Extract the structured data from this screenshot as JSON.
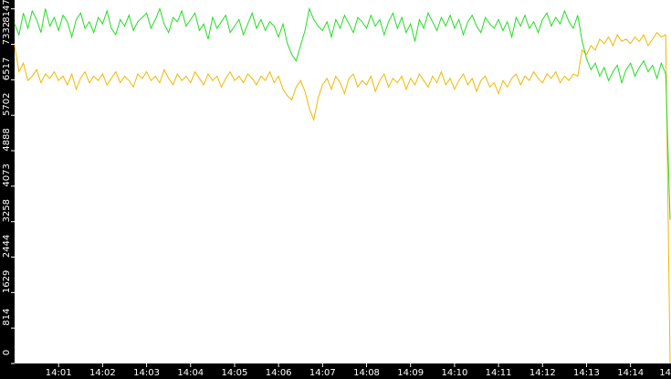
{
  "chart_data": {
    "type": "line",
    "xlim": [
      0,
      14.92
    ],
    "ylim": [
      0,
      8350
    ],
    "xticks": [
      {
        "value": 1,
        "label": "14:01"
      },
      {
        "value": 2,
        "label": "14:02"
      },
      {
        "value": 3,
        "label": "14:03"
      },
      {
        "value": 4,
        "label": "14:04"
      },
      {
        "value": 5,
        "label": "14:05"
      },
      {
        "value": 6,
        "label": "14:06"
      },
      {
        "value": 7,
        "label": "14:07"
      },
      {
        "value": 8,
        "label": "14:08"
      },
      {
        "value": 9,
        "label": "14:09"
      },
      {
        "value": 10,
        "label": "14:10"
      },
      {
        "value": 11,
        "label": "14:11"
      },
      {
        "value": 12,
        "label": "14:12"
      },
      {
        "value": 13,
        "label": "14:13"
      },
      {
        "value": 14,
        "label": "14:14"
      },
      {
        "value": 15,
        "label": "14"
      }
    ],
    "yticks": [
      0,
      814,
      1629,
      2444,
      3258,
      4073,
      4888,
      5702,
      6517,
      7332,
      8147
    ],
    "x": [
      0,
      0.1,
      0.2,
      0.3,
      0.4,
      0.5,
      0.6,
      0.7,
      0.8,
      0.9,
      1,
      1.1,
      1.2,
      1.3,
      1.4,
      1.5,
      1.6,
      1.7,
      1.8,
      1.9,
      2,
      2.1,
      2.2,
      2.3,
      2.4,
      2.5,
      2.6,
      2.7,
      2.8,
      2.9,
      3,
      3.1,
      3.2,
      3.3,
      3.4,
      3.5,
      3.6,
      3.7,
      3.8,
      3.9,
      4,
      4.1,
      4.2,
      4.3,
      4.4,
      4.5,
      4.6,
      4.7,
      4.8,
      4.9,
      5,
      5.1,
      5.2,
      5.3,
      5.4,
      5.5,
      5.6,
      5.7,
      5.8,
      5.9,
      6,
      6.1,
      6.2,
      6.3,
      6.4,
      6.5,
      6.6,
      6.7,
      6.8,
      6.9,
      7,
      7.1,
      7.2,
      7.3,
      7.4,
      7.5,
      7.6,
      7.7,
      7.8,
      7.9,
      8,
      8.1,
      8.2,
      8.3,
      8.4,
      8.5,
      8.6,
      8.7,
      8.8,
      8.9,
      9,
      9.1,
      9.2,
      9.3,
      9.4,
      9.5,
      9.6,
      9.7,
      9.8,
      9.9,
      10,
      10.1,
      10.2,
      10.3,
      10.4,
      10.5,
      10.6,
      10.7,
      10.8,
      10.9,
      11,
      11.1,
      11.2,
      11.3,
      11.4,
      11.5,
      11.6,
      11.7,
      11.8,
      11.9,
      12,
      12.1,
      12.2,
      12.3,
      12.4,
      12.5,
      12.6,
      12.7,
      12.8,
      12.9,
      13,
      13.1,
      13.2,
      13.3,
      13.4,
      13.5,
      13.6,
      13.7,
      13.8,
      13.9,
      14,
      14.1,
      14.2,
      14.3,
      14.4,
      14.5,
      14.6,
      14.7,
      14.8,
      14.9
    ],
    "series": [
      {
        "color": "#22dd22",
        "values": [
          7800,
          7550,
          8050,
          7700,
          8100,
          7900,
          7600,
          8150,
          7750,
          7950,
          7650,
          8000,
          7850,
          7500,
          7900,
          8050,
          7700,
          7850,
          7600,
          7950,
          7800,
          8100,
          7700,
          7550,
          7900,
          7750,
          8000,
          7650,
          7850,
          7950,
          8050,
          7700,
          7900,
          8150,
          7800,
          7600,
          7950,
          7850,
          8100,
          7750,
          7900,
          8050,
          7650,
          7800,
          7450,
          7950,
          7700,
          7850,
          8000,
          7600,
          7750,
          7900,
          7550,
          7800,
          8050,
          7700,
          7900,
          7650,
          7850,
          7750,
          7500,
          7800,
          7350,
          7100,
          6950,
          7300,
          7650,
          8150,
          7900,
          7750,
          7650,
          7850,
          7500,
          7900,
          7700,
          8000,
          7800,
          7600,
          7950,
          7850,
          7700,
          8000,
          7750,
          7900,
          7550,
          7850,
          8050,
          7700,
          7950,
          7600,
          7800,
          7400,
          7900,
          7700,
          8050,
          7850,
          7650,
          7950,
          7750,
          8000,
          7700,
          7900,
          7550,
          7850,
          8000,
          7750,
          7600,
          7950,
          7800,
          7700,
          7900,
          7650,
          7850,
          7500,
          7950,
          7750,
          8000,
          7700,
          7850,
          7600,
          7900,
          8050,
          7750,
          7950,
          7800,
          8100,
          7850,
          7700,
          8000,
          7400,
          7000,
          6750,
          6900,
          6600,
          6800,
          6500,
          6700,
          6850,
          6450,
          6750,
          6900,
          6600,
          6800,
          6950,
          6700,
          6850,
          6550,
          6900,
          6650,
          3300
        ]
      },
      {
        "color": "#f0b800",
        "values": [
          7300,
          6700,
          6900,
          6500,
          6600,
          6750,
          6450,
          6650,
          6550,
          6700,
          6500,
          6600,
          6400,
          6650,
          6300,
          6550,
          6700,
          6450,
          6600,
          6500,
          6650,
          6400,
          6550,
          6700,
          6450,
          6600,
          6500,
          6350,
          6650,
          6550,
          6700,
          6500,
          6600,
          6450,
          6750,
          6550,
          6400,
          6650,
          6500,
          6600,
          6450,
          6700,
          6550,
          6400,
          6650,
          6500,
          6600,
          6350,
          6550,
          6700,
          6500,
          6600,
          6450,
          6650,
          6550,
          6400,
          6600,
          6500,
          6700,
          6450,
          6600,
          6300,
          6150,
          6050,
          6350,
          6500,
          6250,
          5850,
          5600,
          6100,
          6400,
          6550,
          6300,
          6600,
          6450,
          6200,
          6550,
          6650,
          6350,
          6500,
          6400,
          6600,
          6250,
          6500,
          6650,
          6350,
          6550,
          6450,
          6600,
          6300,
          6550,
          6400,
          6650,
          6500,
          6350,
          6600,
          6450,
          6700,
          6400,
          6550,
          6300,
          6500,
          6650,
          6400,
          6550,
          6250,
          6500,
          6600,
          6350,
          6450,
          6200,
          6500,
          6350,
          6550,
          6650,
          6400,
          6600,
          6500,
          6700,
          6550,
          6450,
          6650,
          6550,
          6700,
          6450,
          6600,
          6500,
          6650,
          6600,
          7200,
          7100,
          7300,
          7200,
          7450,
          7350,
          7500,
          7300,
          7550,
          7400,
          7450,
          7350,
          7500,
          7400,
          7550,
          7300,
          7450,
          7600,
          7500,
          7550,
          0
        ]
      }
    ]
  }
}
